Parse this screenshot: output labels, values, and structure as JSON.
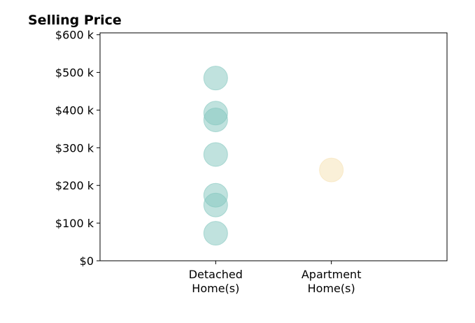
{
  "chart_data": {
    "type": "scatter",
    "title": "Selling Price",
    "xlabel": "",
    "ylabel": "",
    "categories": [
      "Detached\nHome(s)",
      "Apartment\nHome(s)"
    ],
    "ylim": [
      0,
      605000
    ],
    "y_ticks": [
      0,
      100000,
      200000,
      300000,
      400000,
      500000,
      600000
    ],
    "y_tick_labels": [
      "$0",
      "$100 k",
      "$200 k",
      "$300 k",
      "$400 k",
      "$500 k",
      "$600 k"
    ],
    "grid": false,
    "legend": "none",
    "series": [
      {
        "category": "Detached\nHome(s)",
        "color": "#82c6be",
        "values": [
          485000,
          392000,
          374000,
          282000,
          174000,
          148000,
          73000
        ]
      },
      {
        "category": "Apartment\nHome(s)",
        "color": "#f6e1b2",
        "values": [
          241000
        ]
      }
    ]
  }
}
